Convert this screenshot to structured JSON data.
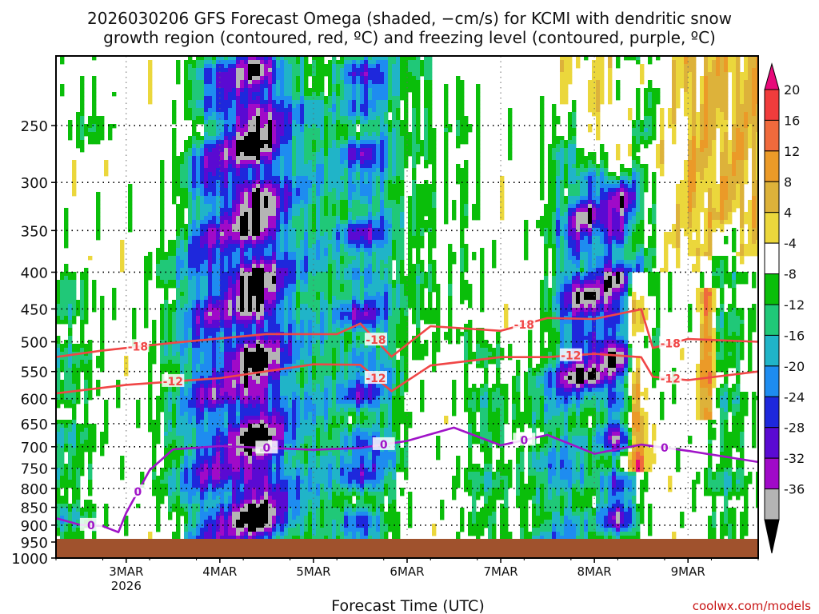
{
  "title_line1": "2026030206 GFS Forecast Omega (shaded, −cm/s) for KCMI with dendritic snow",
  "title_line2": "growth region (contoured, red, ºC) and freezing level (contoured, purple, ºC)",
  "credit": "coolwx.com/models",
  "chart_data": {
    "type": "heatmap",
    "title": "2026030206 GFS Forecast Omega (shaded, −cm/s) for KCMI with dendritic snow growth region (contoured, red, ºC) and freezing level (contoured, purple, ºC)",
    "xlabel": "Forecast Time (UTC)",
    "ylabel": "",
    "y_scale": "log",
    "y_reversed": true,
    "ylim": [
      1000,
      200
    ],
    "xlim": [
      "2026-03-02 06Z",
      "2026-03-09 18Z"
    ],
    "grid": true,
    "y_ticks": [
      250,
      300,
      350,
      400,
      450,
      500,
      550,
      600,
      650,
      700,
      750,
      800,
      850,
      900,
      950,
      1000
    ],
    "x_ticks": [
      {
        "label": "3MAR",
        "sub": "2026",
        "time": "2026-03-03 00Z"
      },
      {
        "label": "4MAR",
        "sub": "",
        "time": "2026-03-04 00Z"
      },
      {
        "label": "5MAR",
        "sub": "",
        "time": "2026-03-05 00Z"
      },
      {
        "label": "6MAR",
        "sub": "",
        "time": "2026-03-06 00Z"
      },
      {
        "label": "7MAR",
        "sub": "",
        "time": "2026-03-07 00Z"
      },
      {
        "label": "8MAR",
        "sub": "",
        "time": "2026-03-08 00Z"
      },
      {
        "label": "9MAR",
        "sub": "",
        "time": "2026-03-09 00Z"
      }
    ],
    "colorbar": {
      "labels": [
        "20",
        "16",
        "12",
        "8",
        "4",
        "-4",
        "-8",
        "-12",
        "-16",
        "-20",
        "-24",
        "-28",
        "-32",
        "-36"
      ],
      "colors": [
        "#e80a7a",
        "#f03c3c",
        "#f06a3c",
        "#eb9a28",
        "#ddb23a",
        "#ebd73c",
        "#ffffff",
        "#0abe0a",
        "#20c878",
        "#20b4c8",
        "#1e8cf0",
        "#1e28dc",
        "#5a0ad2",
        "#a00ac8",
        "#b4b4b4",
        "#000000"
      ]
    },
    "contours": [
      {
        "name": "-18",
        "color": "#f04646",
        "labels": [
          "-18",
          "-18",
          "-18",
          "-18"
        ],
        "points": [
          [
            "2026-03-02 06Z",
            525
          ],
          [
            "2026-03-02 18Z",
            515
          ],
          [
            "2026-03-03 12Z",
            500
          ],
          [
            "2026-03-04 12Z",
            490
          ],
          [
            "2026-03-05 06Z",
            485
          ],
          [
            "2026-03-05 12Z",
            475
          ],
          [
            "2026-03-05 20Z",
            520
          ],
          [
            "2026-03-06 06Z",
            480
          ],
          [
            "2026-03-07 00Z",
            478
          ],
          [
            "2026-03-07 12Z",
            468
          ],
          [
            "2026-03-08 00Z",
            460
          ],
          [
            "2026-03-08 12Z",
            455
          ],
          [
            "2026-03-08 15Z",
            505
          ],
          [
            "2026-03-09 00Z",
            500
          ],
          [
            "2026-03-09 18Z",
            500
          ]
        ]
      },
      {
        "name": "-12",
        "color": "#f04646",
        "labels": [
          "-12",
          "-12",
          "-12",
          "-12"
        ],
        "points": [
          [
            "2026-03-02 06Z",
            590
          ],
          [
            "2026-03-03 00Z",
            575
          ],
          [
            "2026-03-04 00Z",
            560
          ],
          [
            "2026-03-05 00Z",
            540
          ],
          [
            "2026-03-05 12Z",
            535
          ],
          [
            "2026-03-05 20Z",
            590
          ],
          [
            "2026-03-06 06Z",
            535
          ],
          [
            "2026-03-07 00Z",
            530
          ],
          [
            "2026-03-07 12Z",
            520
          ],
          [
            "2026-03-08 00Z",
            525
          ],
          [
            "2026-03-08 12Z",
            520
          ],
          [
            "2026-03-08 15Z",
            565
          ],
          [
            "2026-03-09 00Z",
            560
          ],
          [
            "2026-03-09 18Z",
            550
          ]
        ]
      },
      {
        "name": "0",
        "color": "#a014c8",
        "labels": [
          "0",
          "0",
          "0",
          "0",
          "0",
          "0"
        ],
        "points": [
          [
            "2026-03-02 06Z",
            880
          ],
          [
            "2026-03-02 12Z",
            900
          ],
          [
            "2026-03-02 18Z",
            900
          ],
          [
            "2026-03-02 22Z",
            925
          ],
          [
            "2026-03-03 00Z",
            860
          ],
          [
            "2026-03-03 06Z",
            760
          ],
          [
            "2026-03-03 12Z",
            700
          ],
          [
            "2026-03-04 00Z",
            705
          ],
          [
            "2026-03-05 00Z",
            700
          ],
          [
            "2026-03-05 12Z",
            710
          ],
          [
            "2026-03-06 00Z",
            680
          ],
          [
            "2026-03-06 12Z",
            665
          ],
          [
            "2026-03-07 00Z",
            690
          ],
          [
            "2026-03-07 12Z",
            680
          ],
          [
            "2026-03-08 00Z",
            710
          ],
          [
            "2026-03-08 12Z",
            700
          ],
          [
            "2026-03-09 00Z",
            705
          ],
          [
            "2026-03-09 18Z",
            735
          ]
        ]
      }
    ]
  }
}
